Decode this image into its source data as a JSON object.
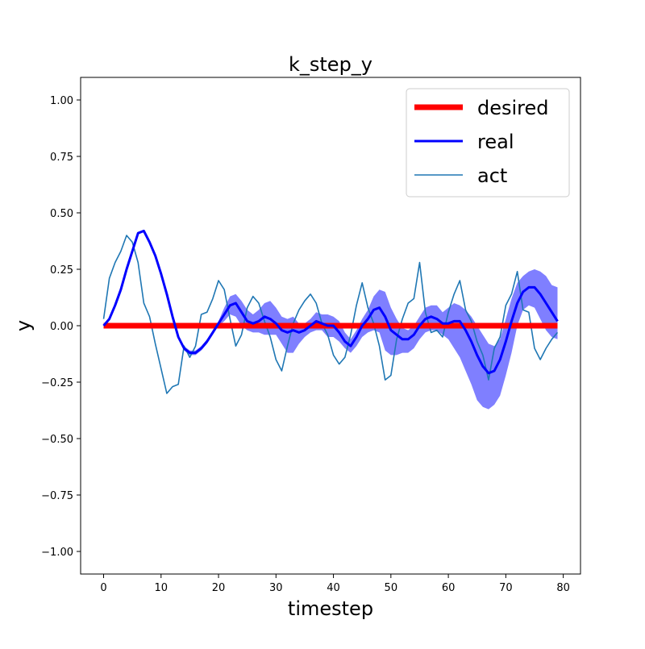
{
  "chart_data": {
    "type": "line",
    "title": "k_step_y",
    "xlabel": "timestep",
    "ylabel": "y",
    "xlim": [
      -4,
      83
    ],
    "ylim": [
      -1.1,
      1.1
    ],
    "x_ticks": [
      0,
      10,
      20,
      30,
      40,
      50,
      60,
      70,
      80
    ],
    "y_ticks": [
      -1.0,
      -0.75,
      -0.5,
      -0.25,
      0.0,
      0.25,
      0.5,
      0.75,
      1.0
    ],
    "x_tick_labels": [
      "0",
      "10",
      "20",
      "30",
      "40",
      "50",
      "60",
      "70",
      "80"
    ],
    "y_tick_labels": [
      "−1.00",
      "−0.75",
      "−0.50",
      "−0.25",
      "0.00",
      "0.25",
      "0.50",
      "0.75",
      "1.00"
    ],
    "grid": false,
    "legend": {
      "placement": "top-right"
    },
    "series": [
      {
        "name": "desired",
        "color": "#ff0000",
        "x": [
          0,
          79
        ],
        "y": [
          0.0,
          0.0
        ]
      },
      {
        "name": "real",
        "color": "#0000ff",
        "band_color": "#0000ff",
        "x": [
          0,
          1,
          2,
          3,
          4,
          5,
          6,
          7,
          8,
          9,
          10,
          11,
          12,
          13,
          14,
          15,
          16,
          17,
          18,
          19,
          20,
          21,
          22,
          23,
          24,
          25,
          26,
          27,
          28,
          29,
          30,
          31,
          32,
          33,
          34,
          35,
          36,
          37,
          38,
          39,
          40,
          41,
          42,
          43,
          44,
          45,
          46,
          47,
          48,
          49,
          50,
          51,
          52,
          53,
          54,
          55,
          56,
          57,
          58,
          59,
          60,
          61,
          62,
          63,
          64,
          65,
          66,
          67,
          68,
          69,
          70,
          71,
          72,
          73,
          74,
          75,
          76,
          77,
          78,
          79
        ],
        "y": [
          0.0,
          0.03,
          0.09,
          0.16,
          0.25,
          0.33,
          0.41,
          0.42,
          0.37,
          0.31,
          0.23,
          0.14,
          0.04,
          -0.05,
          -0.1,
          -0.12,
          -0.12,
          -0.1,
          -0.07,
          -0.03,
          0.01,
          0.05,
          0.09,
          0.1,
          0.06,
          0.02,
          0.01,
          0.02,
          0.04,
          0.03,
          0.01,
          -0.02,
          -0.03,
          -0.02,
          -0.03,
          -0.02,
          0.0,
          0.02,
          0.01,
          0.0,
          0.0,
          -0.03,
          -0.07,
          -0.09,
          -0.05,
          0.0,
          0.03,
          0.07,
          0.08,
          0.04,
          -0.02,
          -0.04,
          -0.06,
          -0.06,
          -0.04,
          0.0,
          0.03,
          0.04,
          0.03,
          0.01,
          0.01,
          0.02,
          0.02,
          -0.02,
          -0.07,
          -0.13,
          -0.18,
          -0.21,
          -0.2,
          -0.15,
          -0.07,
          0.02,
          0.1,
          0.15,
          0.17,
          0.17,
          0.14,
          0.1,
          0.06,
          0.02
        ],
        "band_low": [
          0.0,
          0.03,
          0.09,
          0.16,
          0.25,
          0.33,
          0.41,
          0.42,
          0.37,
          0.31,
          0.23,
          0.14,
          0.04,
          -0.05,
          -0.11,
          -0.13,
          -0.13,
          -0.11,
          -0.08,
          -0.04,
          0.0,
          0.02,
          0.05,
          0.04,
          0.0,
          -0.02,
          -0.03,
          -0.03,
          -0.04,
          -0.04,
          -0.04,
          -0.08,
          -0.12,
          -0.12,
          -0.08,
          -0.05,
          -0.03,
          -0.02,
          -0.02,
          -0.05,
          -0.05,
          -0.07,
          -0.1,
          -0.12,
          -0.09,
          -0.05,
          -0.03,
          -0.02,
          -0.03,
          -0.11,
          -0.13,
          -0.13,
          -0.12,
          -0.12,
          -0.1,
          -0.06,
          -0.03,
          -0.02,
          -0.02,
          -0.04,
          -0.06,
          -0.1,
          -0.14,
          -0.2,
          -0.26,
          -0.33,
          -0.36,
          -0.37,
          -0.35,
          -0.31,
          -0.22,
          -0.12,
          0.0,
          0.07,
          0.09,
          0.08,
          0.03,
          -0.02,
          -0.05,
          -0.06
        ],
        "band_high": [
          0.0,
          0.03,
          0.09,
          0.16,
          0.25,
          0.33,
          0.41,
          0.42,
          0.37,
          0.31,
          0.23,
          0.14,
          0.04,
          -0.05,
          -0.09,
          -0.11,
          -0.11,
          -0.09,
          -0.06,
          -0.02,
          0.02,
          0.08,
          0.13,
          0.14,
          0.11,
          0.07,
          0.05,
          0.07,
          0.1,
          0.11,
          0.08,
          0.04,
          0.03,
          0.04,
          0.01,
          0.01,
          0.03,
          0.06,
          0.05,
          0.05,
          0.04,
          0.02,
          -0.03,
          -0.06,
          -0.02,
          0.03,
          0.07,
          0.13,
          0.16,
          0.15,
          0.08,
          0.03,
          -0.01,
          -0.02,
          0.0,
          0.04,
          0.08,
          0.09,
          0.09,
          0.06,
          0.08,
          0.1,
          0.09,
          0.07,
          0.04,
          0.0,
          -0.04,
          -0.08,
          -0.09,
          -0.06,
          0.03,
          0.12,
          0.19,
          0.22,
          0.24,
          0.25,
          0.24,
          0.22,
          0.18,
          0.17
        ]
      },
      {
        "name": "act",
        "color": "#1f77b4",
        "x": [
          0,
          1,
          2,
          3,
          4,
          5,
          6,
          7,
          8,
          9,
          10,
          11,
          12,
          13,
          14,
          15,
          16,
          17,
          18,
          19,
          20,
          21,
          22,
          23,
          24,
          25,
          26,
          27,
          28,
          29,
          30,
          31,
          32,
          33,
          34,
          35,
          36,
          37,
          38,
          39,
          40,
          41,
          42,
          43,
          44,
          45,
          46,
          47,
          48,
          49,
          50,
          51,
          52,
          53,
          54,
          55,
          56,
          57,
          58,
          59,
          60,
          61,
          62,
          63,
          64,
          65,
          66,
          67,
          68,
          69,
          70,
          71,
          72,
          73,
          74,
          75,
          76,
          77,
          78,
          79
        ],
        "y": [
          0.03,
          0.21,
          0.28,
          0.33,
          0.4,
          0.37,
          0.28,
          0.1,
          0.04,
          -0.08,
          -0.19,
          -0.3,
          -0.27,
          -0.26,
          -0.09,
          -0.14,
          -0.09,
          0.05,
          0.06,
          0.12,
          0.2,
          0.16,
          0.03,
          -0.09,
          -0.04,
          0.08,
          0.13,
          0.1,
          0.02,
          -0.05,
          -0.15,
          -0.2,
          -0.09,
          0.01,
          0.07,
          0.11,
          0.14,
          0.1,
          0.01,
          -0.04,
          -0.13,
          -0.17,
          -0.14,
          -0.04,
          0.09,
          0.19,
          0.08,
          0.01,
          -0.09,
          -0.24,
          -0.22,
          -0.06,
          0.03,
          0.1,
          0.12,
          0.28,
          0.06,
          -0.03,
          -0.02,
          -0.05,
          0.06,
          0.14,
          0.2,
          0.07,
          0.02,
          -0.07,
          -0.13,
          -0.24,
          -0.1,
          -0.05,
          0.09,
          0.14,
          0.24,
          0.07,
          0.06,
          -0.1,
          -0.15,
          -0.1,
          -0.06,
          -0.03
        ]
      }
    ]
  }
}
